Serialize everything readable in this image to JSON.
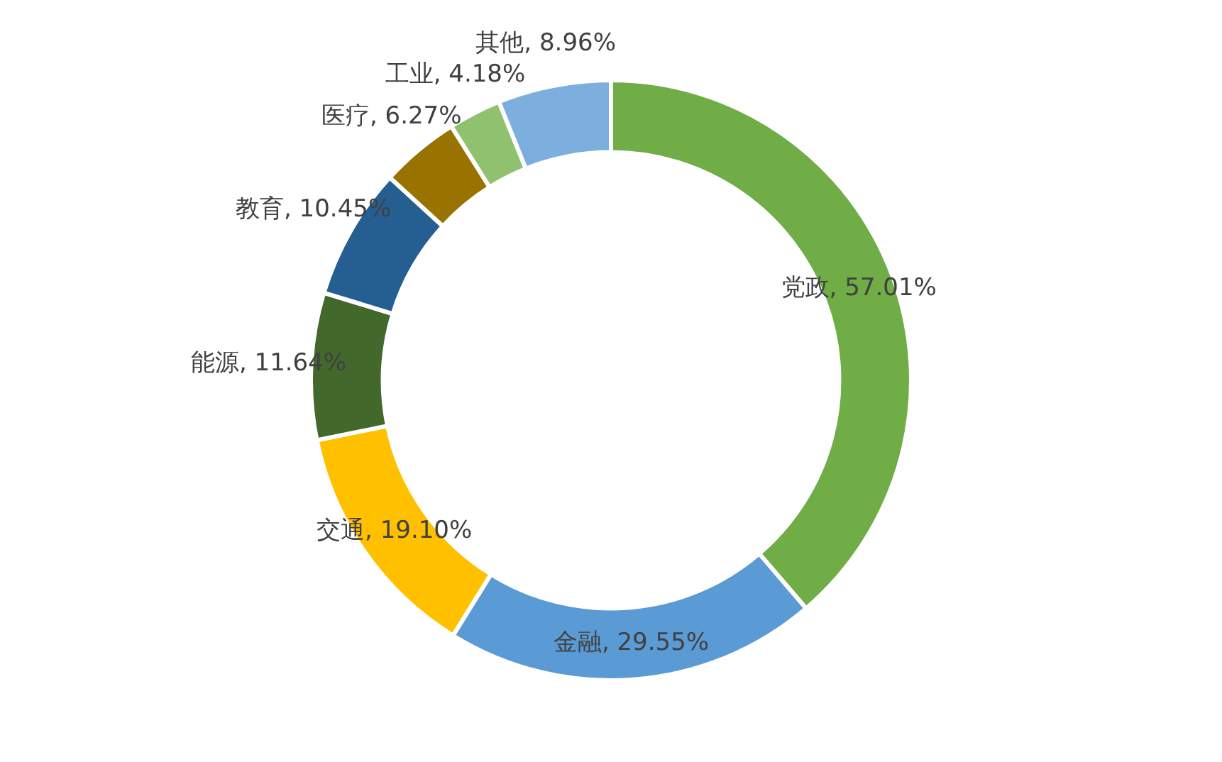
{
  "chart_data": {
    "type": "donut",
    "categories": [
      "党政",
      "金融",
      "交通",
      "能源",
      "教育",
      "医疗",
      "工业",
      "其他"
    ],
    "values": [
      57.01,
      29.55,
      19.1,
      11.64,
      10.45,
      6.27,
      4.18,
      8.96
    ],
    "colors": [
      "#70ad47",
      "#5b9bd5",
      "#ffc000",
      "#43682b",
      "#255e91",
      "#997300",
      "#8fc16f",
      "#7cafdd"
    ],
    "value_labels": [
      "57.01%",
      "29.55%",
      "19.10%",
      "11.64%",
      "10.45%",
      "6.27%",
      "4.18%",
      "8.96%"
    ],
    "legend": false
  }
}
